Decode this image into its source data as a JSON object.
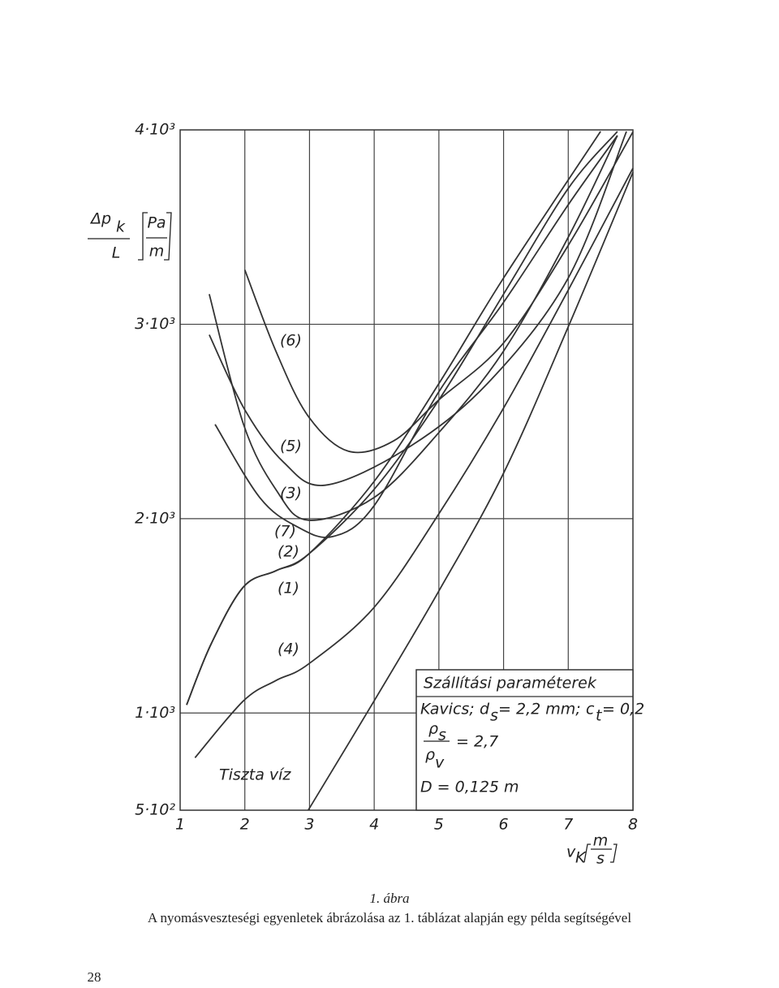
{
  "chart_data": {
    "type": "line",
    "y_label": {
      "numerator": "Δp",
      "subscript": "k",
      "denominator": "L",
      "unit_numerator": "Pa",
      "unit_denominator": "m"
    },
    "x_label": {
      "symbol": "v",
      "subscript": "K",
      "unit_numerator": "m",
      "unit_denominator": "s"
    },
    "xlim": [
      1,
      8
    ],
    "xticks": [
      1,
      2,
      3,
      4,
      5,
      6,
      7,
      8
    ],
    "ylim": [
      500,
      4000
    ],
    "yticks": [
      {
        "value": 500,
        "label": "5·10²"
      },
      {
        "value": 1000,
        "label": "1·10³"
      },
      {
        "value": 2000,
        "label": "2·10³"
      },
      {
        "value": 3000,
        "label": "3·10³"
      },
      {
        "value": 4000,
        "label": "4·10³"
      }
    ],
    "grid": true,
    "series": [
      {
        "name": "(6)",
        "color": "#333333",
        "x": [
          2.0,
          2.48,
          2.98,
          3.6,
          4.3,
          5.0,
          6.0,
          7.0,
          8.0
        ],
        "values": [
          3280,
          2862,
          2527,
          2347,
          2400,
          2611,
          2904,
          3406,
          3990
        ]
      },
      {
        "name": "(5)",
        "color": "#333333",
        "x": [
          1.45,
          2.0,
          2.6,
          3.24,
          4.5,
          5.75,
          7.0,
          7.9
        ],
        "values": [
          2946,
          2560,
          2290,
          2172,
          2360,
          2695,
          3238,
          3992
        ]
      },
      {
        "name": "(3)",
        "color": "#333333",
        "x": [
          1.45,
          1.98,
          2.48,
          2.98,
          4.0,
          5.0,
          6.0,
          7.0,
          7.76
        ],
        "values": [
          3155,
          2485,
          2150,
          1992,
          2109,
          2443,
          2862,
          3448,
          3971
        ]
      },
      {
        "name": "(7)",
        "color": "#333333",
        "x": [
          1.54,
          2.23,
          2.8,
          3.36,
          4.0,
          5.0,
          6.0,
          7.0,
          7.76
        ],
        "values": [
          2485,
          2109,
          1960,
          1908,
          2067,
          2653,
          3113,
          3615,
          3971
        ]
      },
      {
        "name": "(2)",
        "color": "#333333",
        "x": [
          1.1,
          1.48,
          1.98,
          2.48,
          2.98,
          4.0,
          5.0,
          6.0,
          7.5
        ],
        "values": [
          1042,
          1356,
          1649,
          1732,
          1816,
          2192,
          2695,
          3238,
          3992
        ]
      },
      {
        "name": "(1)",
        "color": "#333333",
        "x": [
          1.1,
          1.48,
          1.98,
          2.48,
          2.98,
          4.0,
          5.0,
          6.0,
          7.0,
          7.76
        ],
        "values": [
          1042,
          1356,
          1649,
          1732,
          1816,
          2151,
          2611,
          3155,
          3699,
          3992
        ]
      },
      {
        "name": "(4)",
        "color": "#333333",
        "x": [
          1.23,
          1.98,
          2.48,
          2.98,
          4.0,
          5.0,
          6.0,
          7.0,
          8.0
        ],
        "values": [
          770,
          1063,
          1167,
          1251,
          1544,
          2025,
          2569,
          3176,
          3803
        ]
      },
      {
        "name": "Tiszta víz",
        "color": "#333333",
        "x": [
          2.98,
          4.0,
          5.0,
          6.0,
          7.0,
          8.0
        ],
        "values": [
          500,
          1063,
          1628,
          2234,
          2987,
          3782
        ]
      }
    ],
    "parameters_box": {
      "title": "Szállítási paraméterek",
      "material": "Kavics;",
      "ds_symbol": "d",
      "ds_subscript": "s",
      "ds_value": "= 2,2 mm;",
      "ct_symbol": "c",
      "ct_subscript": "t",
      "ct_value": "= 0,2",
      "ratio_numerator": "ρ",
      "ratio_numerator_subscript": "s",
      "ratio_denominator": "ρ",
      "ratio_denominator_subscript": "v",
      "ratio_value": "= 2,7",
      "diameter": "D = 0,125 m"
    },
    "caption_number": "1. ábra",
    "caption": "A nyomásveszteségi egyenletek ábrázolása az 1. táblázat alapján egy példa segítségével"
  },
  "page_number": "28"
}
